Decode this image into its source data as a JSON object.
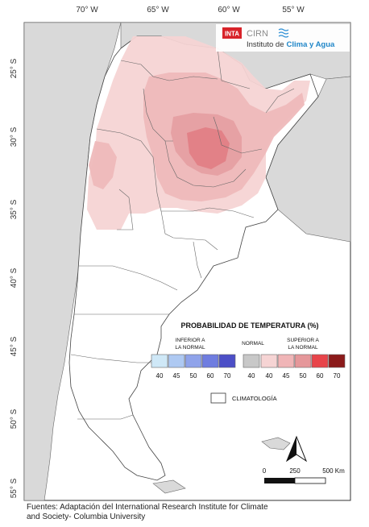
{
  "axes": {
    "lon_labels": [
      "70° W",
      "65° W",
      "60° W",
      "55° W"
    ],
    "lat_labels": [
      "25° S",
      "30° S",
      "35° S",
      "40° S",
      "45° S",
      "50° S",
      "55° S"
    ]
  },
  "logo": {
    "inta": "INTA",
    "cirn": "CIRN",
    "instituto": "Instituto de",
    "clima": "Clima y Agua"
  },
  "legend": {
    "title": "PROBABILIDAD DE TEMPERATURA (%)",
    "inferior_line1": "INFERIOR A",
    "inferior_line2": "LA NORMAL",
    "normal": "NORMAL",
    "superior_line1": "SUPERIOR A",
    "superior_line2": "LA NORMAL",
    "below_values": [
      "40",
      "45",
      "50",
      "60",
      "70"
    ],
    "normal_value": "40",
    "above_values": [
      "40",
      "45",
      "50",
      "60",
      "70"
    ],
    "below_colors": [
      "#cfe8f7",
      "#aec9f2",
      "#8fa3ea",
      "#6f7de0",
      "#4c4fc7"
    ],
    "normal_color": "#c8c8c8",
    "above_colors": [
      "#f6d4d4",
      "#f0b5b7",
      "#e5979a",
      "#e8444a",
      "#8b1a1a"
    ],
    "climatologia": "CLIMATOLOGÍA"
  },
  "scale": {
    "labels": [
      "0",
      "250",
      "500 Km"
    ],
    "north": "N"
  },
  "source_line1": "Fuentes: Adaptación del International Research Institute for Climate",
  "source_line2": "and Society- Columbia University"
}
